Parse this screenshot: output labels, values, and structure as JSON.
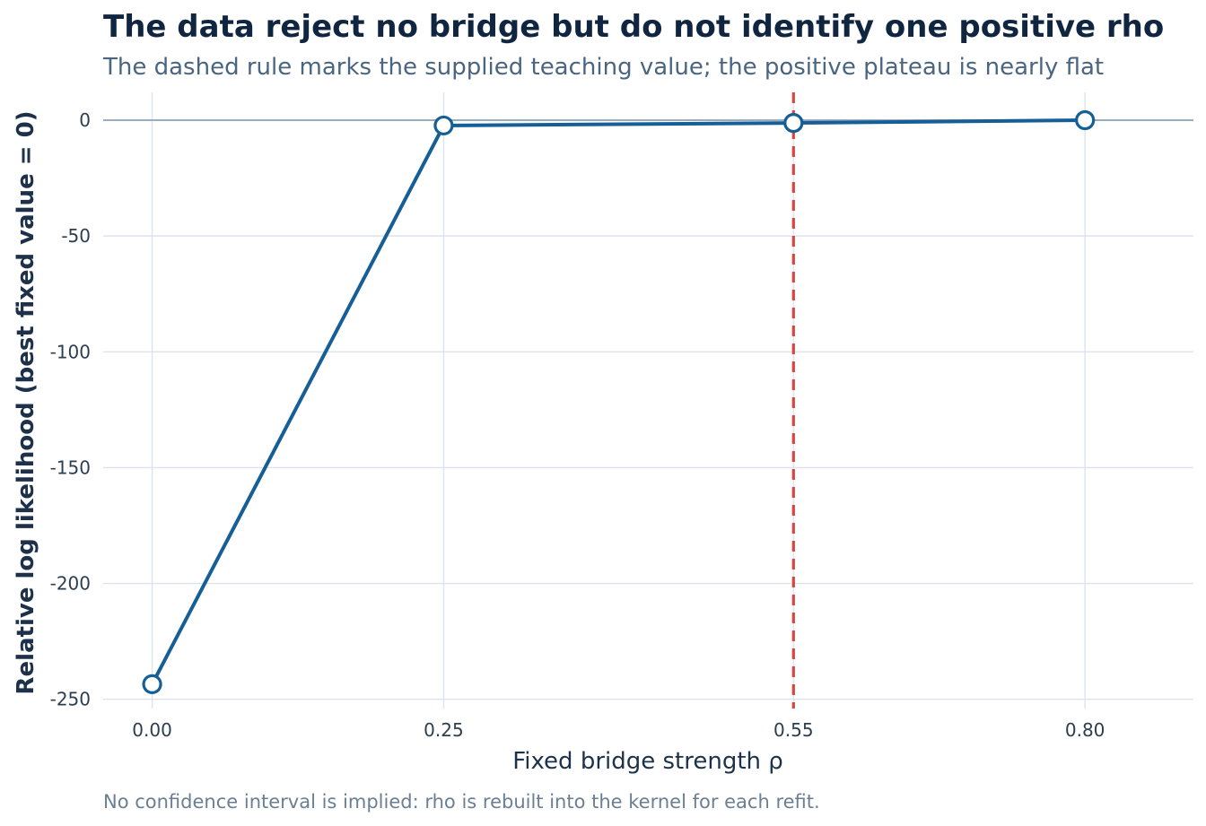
{
  "chart_data": {
    "type": "line",
    "title": "The data reject no bridge but do not identify one positive rho",
    "subtitle": "The dashed rule marks the supplied teaching value; the positive plateau is nearly flat",
    "caption": "No confidence interval is implied: rho is rebuilt into the kernel for each refit.",
    "xlabel": "Fixed bridge strength ρ",
    "ylabel": "Relative log likelihood (best fixed value = 0)",
    "x": [
      0.0,
      0.25,
      0.55,
      0.8
    ],
    "x_tick_labels": [
      "0.00",
      "0.25",
      "0.55",
      "0.80"
    ],
    "series": [
      {
        "values": [
          -243.5,
          -2.3,
          -1.2,
          0.0
        ]
      }
    ],
    "y_ticks": [
      0,
      -50,
      -100,
      -150,
      -200,
      -250
    ],
    "y_tick_labels": [
      "0",
      "-50",
      "-100",
      "-150",
      "-200",
      "-250"
    ],
    "xlim": [
      -0.042,
      0.893
    ],
    "ylim": [
      -254,
      12
    ],
    "reference_lines": {
      "horizontal_y": 0,
      "vertical_dashed_x": 0.55
    },
    "grid": true,
    "legend": "none",
    "colors": {
      "line": "#155e96",
      "marker_fill": "#ffffff",
      "reference_vertical": "#d64541",
      "reference_horizontal": "#9aacbe",
      "grid": "#dde3ee"
    }
  }
}
